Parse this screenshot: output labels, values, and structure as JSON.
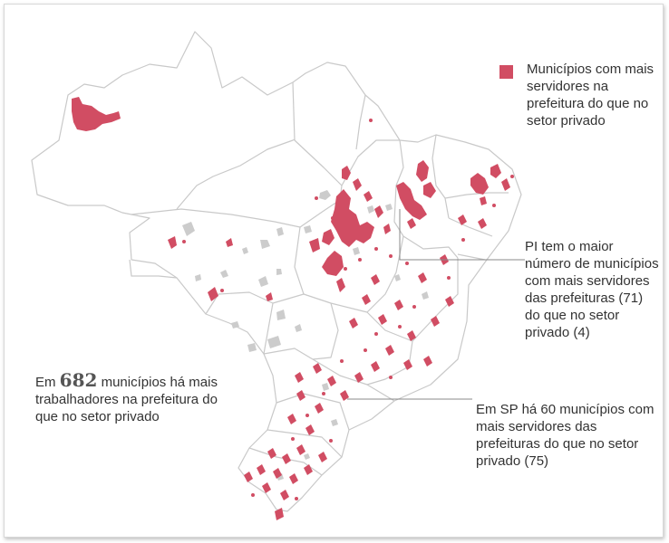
{
  "colors": {
    "highlight": "#d14d63",
    "state_fill": "#ffffff",
    "state_border": "#c9c9c9",
    "gray_municipality": "#cccccc",
    "leader_line": "#888888",
    "text": "#333333"
  },
  "legend": {
    "label": "Municípios com mais servidores na prefeitura do que no setor privado"
  },
  "annotations": {
    "pi": "PI tem o maior número de municípios com mais servidores das prefeituras (71) do que no setor privado (4)",
    "sp": "Em SP há 60 municípios com mais servidores das prefeituras do que no setor privado (75)",
    "total_prefix": "Em ",
    "total_number": "682",
    "total_suffix": " municípios há mais trabalhadores na prefeitura do que no setor privado"
  }
}
